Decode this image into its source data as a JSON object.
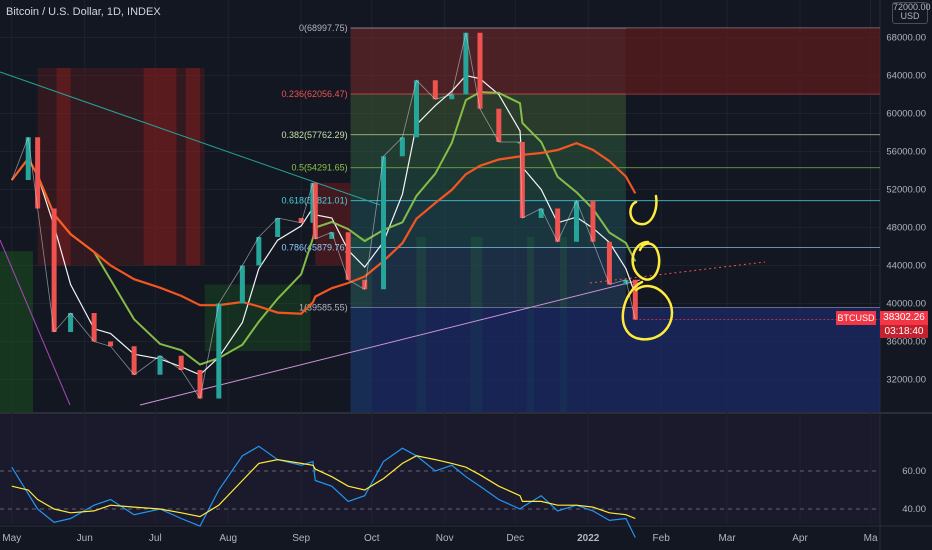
{
  "title": "Bitcoin / U.S. Dollar, 1D, INDEX",
  "currency_box": {
    "line1": "72000.00",
    "line2": "USD"
  },
  "price_tag": {
    "symbol": "BTCUSD",
    "price": "38302.26",
    "countdown": "03:18:40"
  },
  "colors": {
    "background": "#131722",
    "up": "#26a69a",
    "down": "#ef5350",
    "sma_short": "#ffffff",
    "sma_mid": "#8bc34a",
    "sma_long": "#ff5722",
    "rsi": "#2196f3",
    "rsi_ma": "#ffeb3b",
    "annotation": "#ffeb3b"
  },
  "chart_data": [
    {
      "type": "line",
      "title": "Bitcoin / U.S. Dollar, 1D, INDEX",
      "y_ticks": [
        "68000.00",
        "64000.00",
        "60000.00",
        "56000.00",
        "52000.00",
        "48000.00",
        "44000.00",
        "40000.00",
        "36000.00",
        "32000.00"
      ],
      "ylim": [
        27500,
        72500
      ],
      "x_ticks": [
        "May",
        "Jun",
        "Jul",
        "Aug",
        "Sep",
        "Oct",
        "Nov",
        "Dec",
        "2022",
        "Feb",
        "Mar",
        "Apr",
        "Ma"
      ],
      "price": {
        "name": "BTCUSD",
        "x": [
          "2021-05-01",
          "2021-05-08",
          "2021-05-12",
          "2021-05-19",
          "2021-05-26",
          "2021-06-05",
          "2021-06-12",
          "2021-06-22",
          "2021-07-03",
          "2021-07-12",
          "2021-07-20",
          "2021-07-28",
          "2021-08-07",
          "2021-08-14",
          "2021-08-22",
          "2021-09-01",
          "2021-09-06",
          "2021-09-07",
          "2021-09-14",
          "2021-09-21",
          "2021-09-28",
          "2021-10-06",
          "2021-10-14",
          "2021-10-20",
          "2021-10-28",
          "2021-11-04",
          "2021-11-10",
          "2021-11-16",
          "2021-11-24",
          "2021-12-03",
          "2021-12-04",
          "2021-12-12",
          "2021-12-19",
          "2021-12-27",
          "2022-01-03",
          "2022-01-10",
          "2022-01-17",
          "2022-01-21"
        ],
        "values": [
          53000,
          57500,
          50000,
          37000,
          39000,
          36000,
          35500,
          32500,
          34500,
          33000,
          30000,
          40000,
          44000,
          47000,
          49000,
          48500,
          52700,
          46800,
          47500,
          42500,
          41500,
          55500,
          57500,
          63500,
          61500,
          62000,
          68500,
          60500,
          57000,
          57000,
          49000,
          50000,
          46500,
          50800,
          46500,
          42000,
          42500,
          38302
        ]
      },
      "fib_levels": [
        {
          "ratio": "0",
          "price": 68997.75,
          "label": "0(68997.75)"
        },
        {
          "ratio": "0.236",
          "price": 62056.47,
          "label": "0.236(62056.47)"
        },
        {
          "ratio": "0.382",
          "price": 57762.29,
          "label": "0.382(57762.29)"
        },
        {
          "ratio": "0.5",
          "price": 54291.65,
          "label": "0.5(54291.65)"
        },
        {
          "ratio": "0.618",
          "price": 50821.01,
          "label": "0.618(50821.01)"
        },
        {
          "ratio": "0.786",
          "price": 45879.76,
          "label": "0.786(45879.76)"
        },
        {
          "ratio": "1",
          "price": 39585.55,
          "label": "1(39585.55)"
        }
      ],
      "grid": true,
      "legend": "none"
    },
    {
      "type": "line",
      "title": "",
      "y_ticks": [
        "60.00",
        "40.00"
      ],
      "ylim": [
        25,
        80
      ],
      "series": [
        {
          "values": [
            62,
            48,
            40,
            33,
            35,
            42,
            45,
            37,
            40,
            35,
            31,
            50,
            68,
            73,
            66,
            63,
            65,
            55,
            52,
            44,
            47,
            65,
            72,
            68,
            60,
            63,
            57,
            52,
            45,
            40,
            41,
            47,
            39,
            42,
            39,
            34,
            35,
            25
          ]
        },
        {
          "values": [
            52,
            50,
            45,
            40,
            38,
            39,
            42,
            41,
            40,
            38,
            36,
            42,
            55,
            64,
            66,
            64,
            63,
            61,
            57,
            52,
            50,
            56,
            64,
            68,
            66,
            64,
            62,
            58,
            52,
            47,
            44,
            44,
            42,
            42,
            41,
            38,
            37,
            35
          ]
        }
      ]
    }
  ]
}
